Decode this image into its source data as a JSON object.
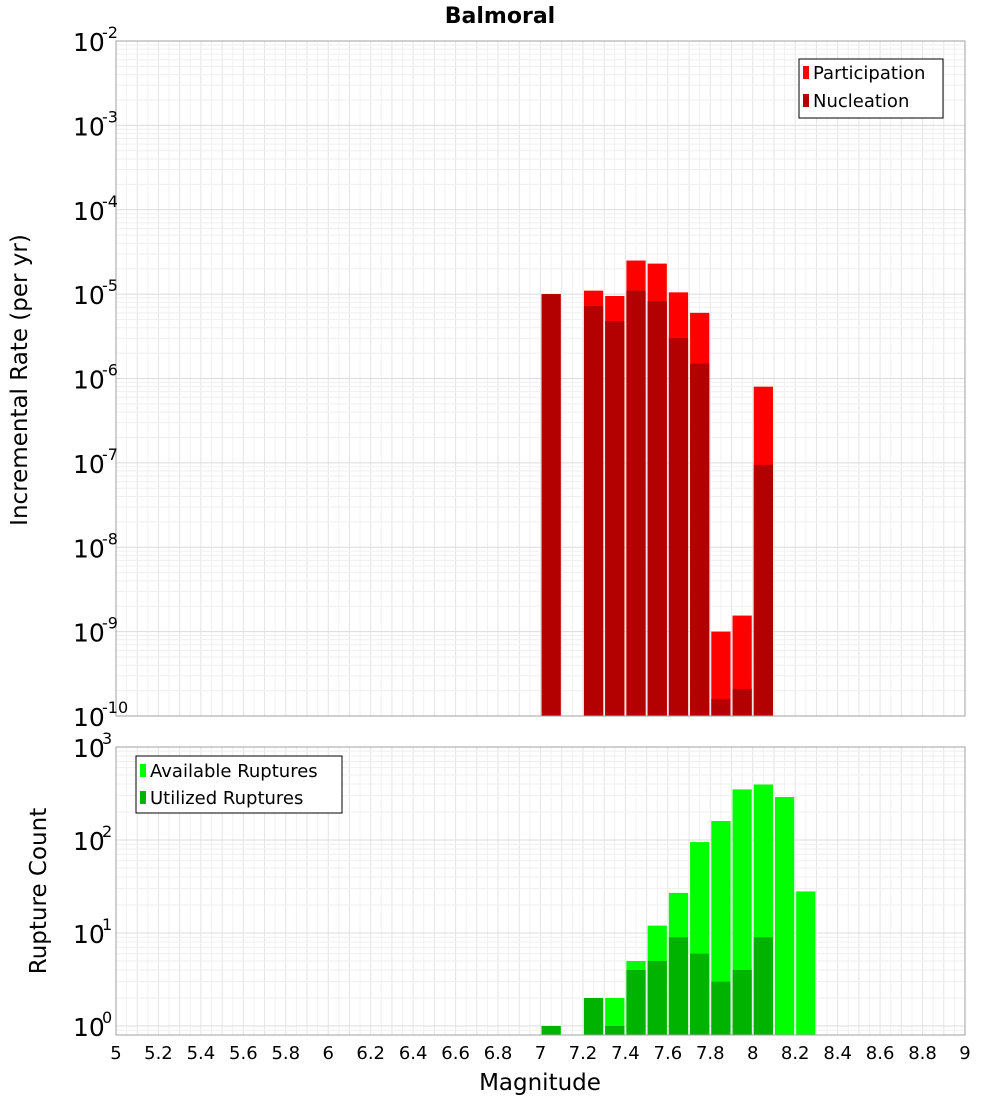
{
  "chart_data": [
    {
      "type": "bar",
      "title": "Balmoral",
      "xlabel": "",
      "ylabel": "Incremental Rate (per yr)",
      "yscale": "log",
      "ylim": [
        1e-10,
        0.01
      ],
      "xlim": [
        5,
        9
      ],
      "bar_width": 0.1,
      "y_ticks": [
        {
          "base": "10",
          "exp": "-10",
          "value": 1e-10
        },
        {
          "base": "10",
          "exp": "-9",
          "value": 1e-09
        },
        {
          "base": "10",
          "exp": "-8",
          "value": 1e-08
        },
        {
          "base": "10",
          "exp": "-7",
          "value": 1e-07
        },
        {
          "base": "10",
          "exp": "-6",
          "value": 1e-06
        },
        {
          "base": "10",
          "exp": "-5",
          "value": 1e-05
        },
        {
          "base": "10",
          "exp": "-4",
          "value": 0.0001
        },
        {
          "base": "10",
          "exp": "-3",
          "value": 0.001
        },
        {
          "base": "10",
          "exp": "-2",
          "value": 0.01
        }
      ],
      "legend": {
        "position": "top-right",
        "entries": [
          "Participation",
          "Nucleation"
        ]
      },
      "series": [
        {
          "name": "Participation",
          "color": "#ff0000",
          "x": [
            7.05,
            7.25,
            7.35,
            7.45,
            7.55,
            7.65,
            7.75,
            7.85,
            7.95,
            8.05
          ],
          "values": [
            1e-05,
            1.1e-05,
            9.5e-06,
            2.5e-05,
            2.3e-05,
            1.05e-05,
            6e-06,
            1e-09,
            1.55e-09,
            8e-07
          ]
        },
        {
          "name": "Nucleation",
          "color": "#b30000",
          "x": [
            7.05,
            7.25,
            7.35,
            7.45,
            7.55,
            7.65,
            7.75,
            7.85,
            7.95,
            8.05
          ],
          "values": [
            1e-05,
            7.2e-06,
            4.8e-06,
            1.1e-05,
            8.2e-06,
            3e-06,
            1.5e-06,
            1.6e-10,
            2.1e-10,
            9.5e-08
          ]
        }
      ]
    },
    {
      "type": "bar",
      "title": "",
      "xlabel": "Magnitude",
      "ylabel": "Rupture Count",
      "yscale": "log",
      "ylim": [
        0.8,
        1000
      ],
      "xlim": [
        5,
        9
      ],
      "bar_width": 0.1,
      "y_ticks": [
        {
          "base": "10",
          "exp": "0",
          "value": 1
        },
        {
          "base": "10",
          "exp": "1",
          "value": 10
        },
        {
          "base": "10",
          "exp": "2",
          "value": 100
        },
        {
          "base": "10",
          "exp": "3",
          "value": 1000
        }
      ],
      "x_ticks": [
        "5",
        "5.2",
        "5.4",
        "5.6",
        "5.8",
        "6",
        "6.2",
        "6.4",
        "6.6",
        "6.8",
        "7",
        "7.2",
        "7.4",
        "7.6",
        "7.8",
        "8",
        "8.2",
        "8.4",
        "8.6",
        "8.8",
        "9"
      ],
      "legend": {
        "position": "top-left",
        "entries": [
          "Available Ruptures",
          "Utilized Ruptures"
        ]
      },
      "series": [
        {
          "name": "Available Ruptures",
          "color": "#00ff00",
          "x": [
            7.05,
            7.25,
            7.35,
            7.45,
            7.55,
            7.65,
            7.75,
            7.85,
            7.95,
            8.05,
            8.15,
            8.25
          ],
          "values": [
            1,
            2,
            2,
            5,
            12,
            27,
            95,
            160,
            350,
            395,
            290,
            28
          ]
        },
        {
          "name": "Utilized Ruptures",
          "color": "#00b300",
          "x": [
            7.05,
            7.25,
            7.35,
            7.45,
            7.55,
            7.65,
            7.75,
            7.85,
            7.95,
            8.05
          ],
          "values": [
            1,
            2,
            1,
            4,
            5,
            9,
            6,
            3,
            4,
            9
          ]
        }
      ]
    }
  ]
}
